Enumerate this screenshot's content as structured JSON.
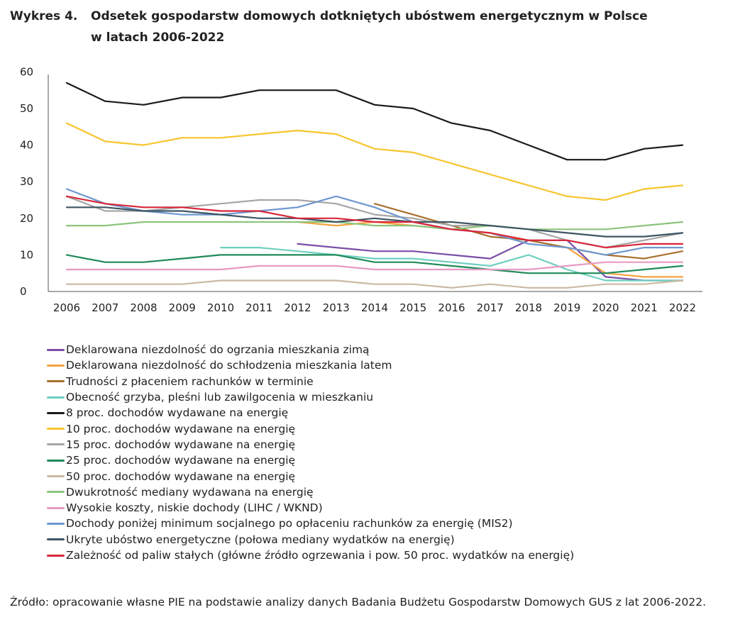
{
  "figure": {
    "label": "Wykres 4.",
    "title_line1": "Odsetek gospodarstw domowych dotkniętych ubóstwem energetycznym w Polsce",
    "title_line2": "w latach 2006-2022"
  },
  "source": "Źródło: opracowanie własne PIE na podstawie analizy danych Badania Budżetu Gospodarstw Domowych GUS z lat 2006-2022.",
  "chart_data": {
    "type": "line",
    "title": "Odsetek gospodarstw domowych dotkniętych ubóstwem energetycznym w Polsce w latach 2006-2022",
    "xlabel": "",
    "ylabel": "",
    "ylim": [
      0,
      60
    ],
    "yticks": [
      "0",
      "10",
      "20",
      "30",
      "40",
      "50",
      "60"
    ],
    "categories": [
      "2006",
      "2007",
      "2008",
      "2009",
      "2010",
      "2011",
      "2012",
      "2013",
      "2014",
      "2015",
      "2016",
      "2017",
      "2018",
      "2019",
      "2020",
      "2021",
      "2022"
    ],
    "grid": false,
    "legend_position": "bottom",
    "series": [
      {
        "name": "Deklarowana niezdolność do ogrzania mieszkania zimą",
        "color": "#7b4fa6",
        "values": [
          null,
          null,
          null,
          null,
          null,
          null,
          13,
          12,
          11,
          11,
          10,
          9,
          14,
          14,
          4,
          3,
          3
        ]
      },
      {
        "name": "Deklarowana niezdolność do schłodzenia mieszkania latem",
        "color": "#f4a340",
        "values": [
          null,
          null,
          null,
          null,
          null,
          null,
          19,
          18,
          19,
          18,
          17,
          16,
          14,
          12,
          5,
          4,
          4
        ]
      },
      {
        "name": "Trudności z płaceniem rachunków w terminie",
        "color": "#a8702e",
        "values": [
          null,
          null,
          null,
          null,
          null,
          null,
          null,
          null,
          24,
          21,
          18,
          15,
          14,
          12,
          10,
          9,
          11
        ]
      },
      {
        "name": "Obecność grzyba, pleśni lub zawilgocenia w mieszkaniu",
        "color": "#6fcfc0",
        "values": [
          null,
          null,
          null,
          null,
          12,
          12,
          11,
          10,
          9,
          9,
          8,
          7,
          10,
          6,
          3,
          3,
          3
        ]
      },
      {
        "name": "8 proc. dochodów wydawane na energię",
        "color": "#1a1a1a",
        "values": [
          57,
          52,
          51,
          53,
          53,
          55,
          55,
          55,
          51,
          50,
          46,
          44,
          40,
          36,
          36,
          39,
          40
        ]
      },
      {
        "name": "10 proc. dochodów wydawane na energię",
        "color": "#f7c52f",
        "values": [
          46,
          41,
          40,
          42,
          42,
          43,
          44,
          43,
          39,
          38,
          35,
          32,
          29,
          26,
          25,
          28,
          29
        ]
      },
      {
        "name": "15 proc. dochodów wydawane na energię",
        "color": "#a6a6a6",
        "values": [
          26,
          22,
          22,
          23,
          24,
          25,
          25,
          24,
          21,
          20,
          18,
          18,
          17,
          14,
          12,
          14,
          16
        ]
      },
      {
        "name": "25 proc. dochodów wydawane na energię",
        "color": "#1f8a5a",
        "values": [
          10,
          8,
          8,
          9,
          10,
          10,
          10,
          10,
          8,
          8,
          7,
          6,
          5,
          5,
          5,
          6,
          7
        ]
      },
      {
        "name": "50 proc. dochodów wydawane na energię",
        "color": "#cbb9a3",
        "values": [
          2,
          2,
          2,
          2,
          3,
          3,
          3,
          3,
          2,
          2,
          1,
          2,
          1,
          1,
          2,
          2,
          3
        ]
      },
      {
        "name": "Dwukrotność mediany wydawana na energię",
        "color": "#8cc47c",
        "values": [
          18,
          18,
          19,
          19,
          19,
          19,
          19,
          19,
          18,
          18,
          17,
          18,
          17,
          17,
          17,
          18,
          19
        ]
      },
      {
        "name": "Wysokie koszty, niskie dochody (LIHC / WKND)",
        "color": "#e89ac4",
        "values": [
          6,
          6,
          6,
          6,
          6,
          7,
          7,
          7,
          6,
          6,
          6,
          6,
          6,
          7,
          8,
          8,
          8
        ]
      },
      {
        "name": "Dochody poniżej minimum socjalnego po opłaceniu rachunków za energię (MIS2)",
        "color": "#6e97cf",
        "values": [
          28,
          24,
          22,
          21,
          21,
          22,
          23,
          26,
          23,
          19,
          17,
          16,
          13,
          12,
          10,
          12,
          12
        ]
      },
      {
        "name": "Ukryte ubóstwo energetyczne (połowa mediany wydatków na energię)",
        "color": "#3e5563",
        "values": [
          23,
          23,
          22,
          22,
          21,
          20,
          20,
          19,
          20,
          19,
          19,
          18,
          17,
          16,
          15,
          15,
          16
        ]
      },
      {
        "name": "Zależność od paliw stałych (główne źródło ogrzewania i pow. 50 proc. wydatków na energię)",
        "color": "#d8263a",
        "values": [
          26,
          24,
          23,
          23,
          22,
          22,
          20,
          20,
          19,
          19,
          17,
          16,
          14,
          14,
          12,
          13,
          13
        ]
      }
    ]
  }
}
